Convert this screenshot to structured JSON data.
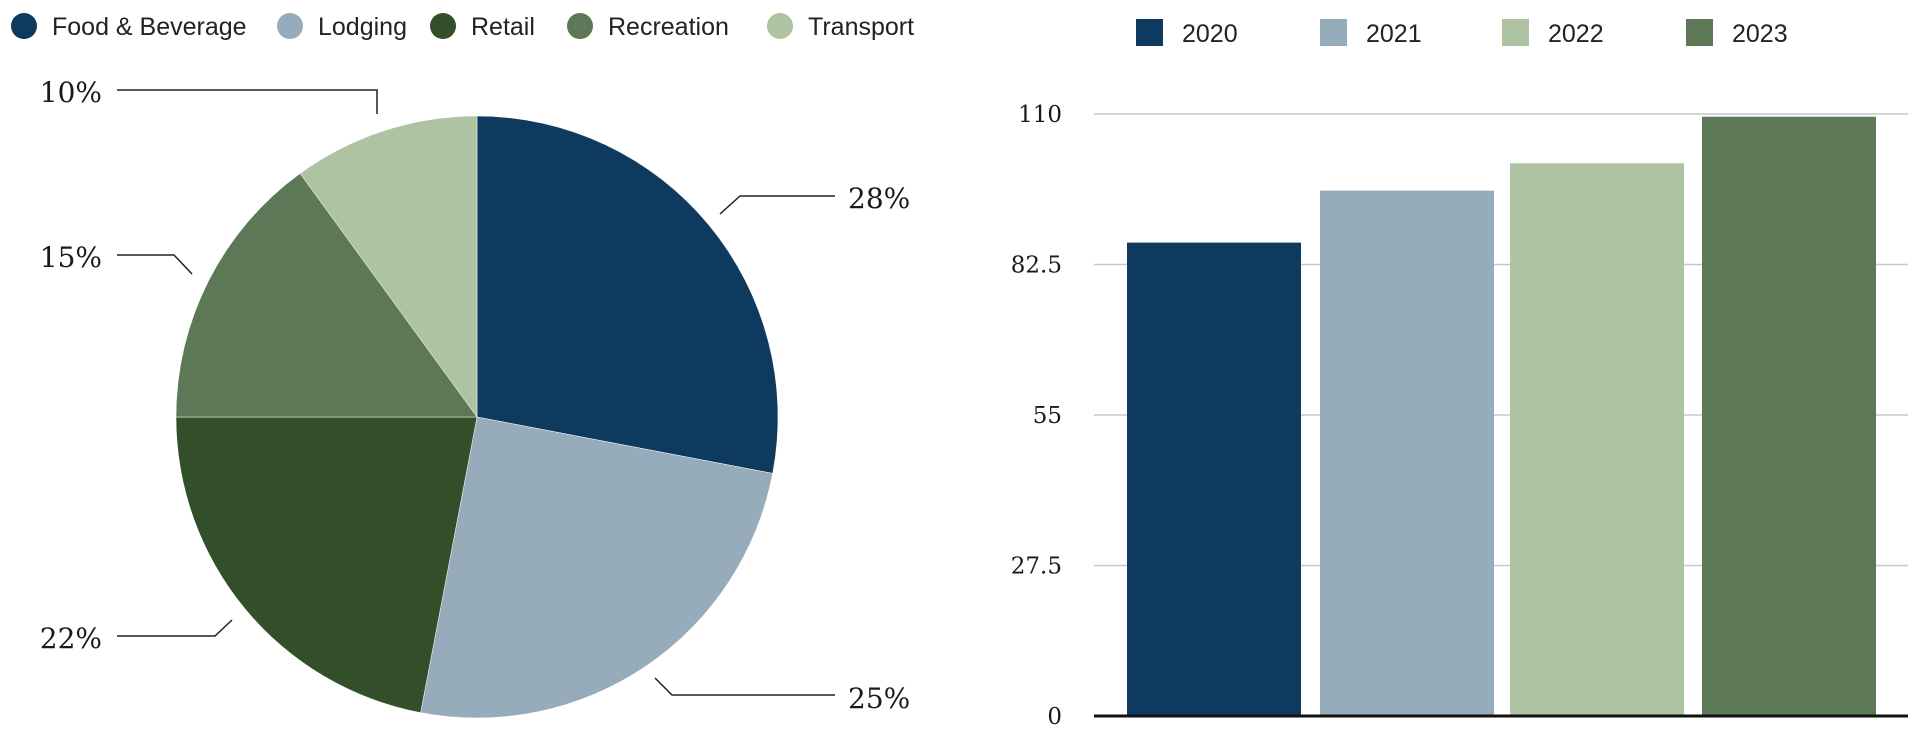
{
  "chart_data": [
    {
      "type": "pie",
      "legend_position": "top-left",
      "categories": [
        "Food & Beverage",
        "Lodging",
        "Retail",
        "Recreation",
        "Transport"
      ],
      "values": [
        28,
        25,
        22,
        15,
        10
      ],
      "labels": [
        "28%",
        "25%",
        "22%",
        "15%",
        "10%"
      ],
      "colors": [
        "#0f3a60",
        "#96acbb",
        "#324f29",
        "#5d7856",
        "#aec3a2"
      ]
    },
    {
      "type": "bar",
      "legend_position": "top",
      "categories": [
        "2020",
        "2021",
        "2022",
        "2023"
      ],
      "values": [
        86.5,
        96,
        101,
        109.5
      ],
      "colors": [
        "#0f3a60",
        "#96acbb",
        "#aec3a2",
        "#5d7856"
      ],
      "ylim": [
        0,
        110
      ],
      "yticks": [
        0,
        27.5,
        55,
        82.5,
        110
      ],
      "ytick_labels": [
        "0",
        "27.5",
        "55",
        "82.5",
        "110"
      ],
      "grid": true
    }
  ]
}
